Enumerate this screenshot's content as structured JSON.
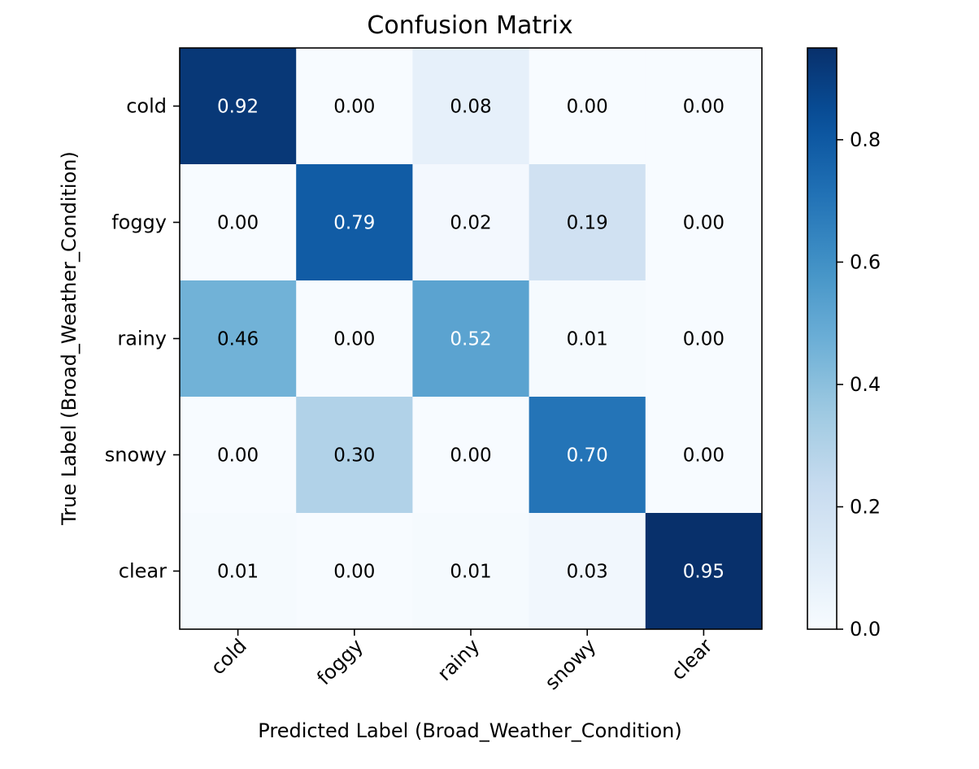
{
  "chart_data": {
    "type": "heatmap",
    "title": "Confusion Matrix",
    "xlabel": "Predicted Label (Broad_Weather_Condition)",
    "ylabel": "True Label (Broad_Weather_Condition)",
    "x_categories": [
      "cold",
      "foggy",
      "rainy",
      "snowy",
      "clear"
    ],
    "y_categories": [
      "cold",
      "foggy",
      "rainy",
      "snowy",
      "clear"
    ],
    "values": [
      [
        0.92,
        0.0,
        0.08,
        0.0,
        0.0
      ],
      [
        0.0,
        0.79,
        0.02,
        0.19,
        0.0
      ],
      [
        0.46,
        0.0,
        0.52,
        0.01,
        0.0
      ],
      [
        0.0,
        0.3,
        0.0,
        0.7,
        0.0
      ],
      [
        0.01,
        0.0,
        0.01,
        0.03,
        0.95
      ]
    ],
    "value_format": "0.00",
    "colormap": "Blues",
    "color_range": [
      0,
      0.95
    ],
    "colorbar": {
      "ticks": [
        0.0,
        0.2,
        0.4,
        0.6,
        0.8
      ],
      "tick_labels": [
        "0.0",
        "0.2",
        "0.4",
        "0.6",
        "0.8"
      ]
    },
    "x_tick_rotation": 45,
    "grid": false
  }
}
